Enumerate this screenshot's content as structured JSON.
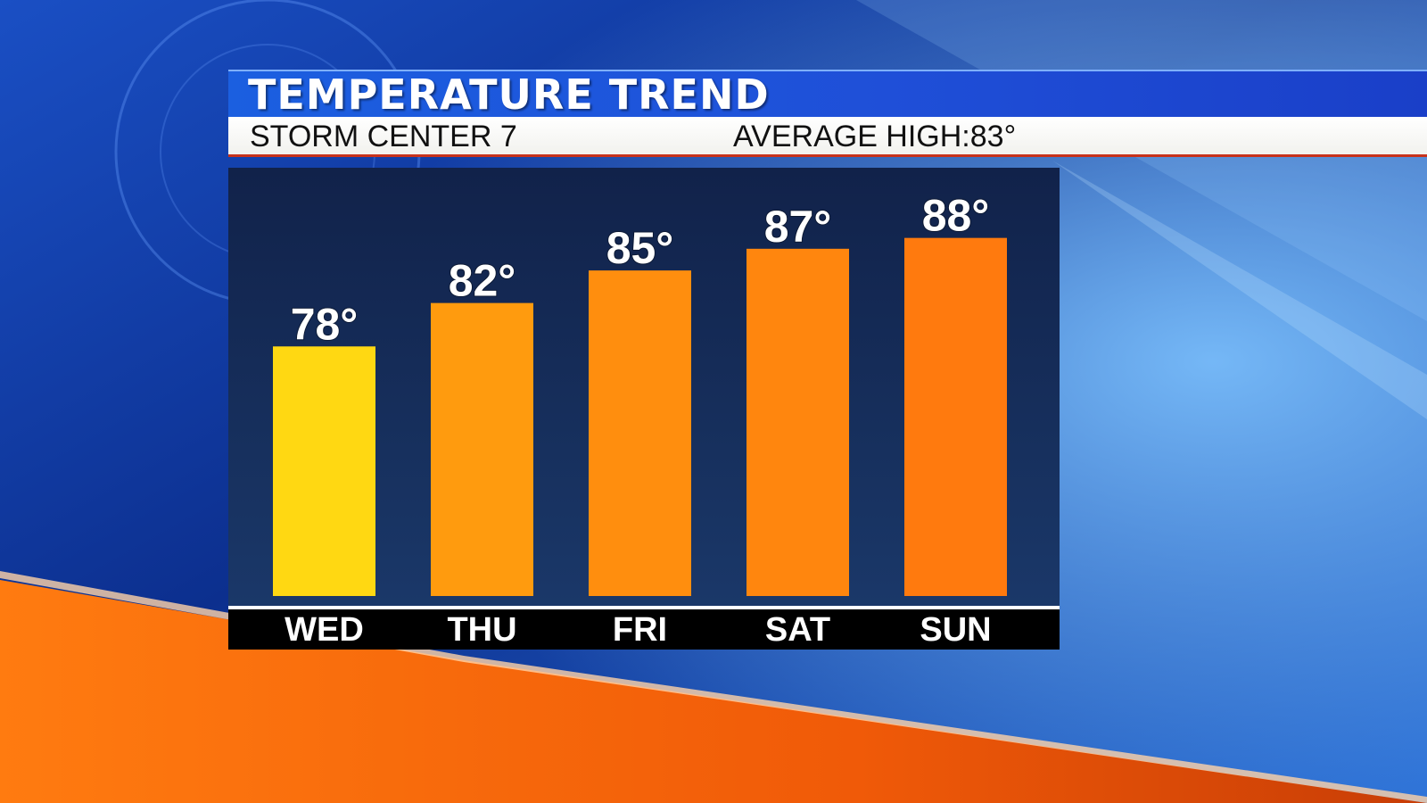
{
  "header": {
    "title": "TEMPERATURE TREND",
    "station": "STORM CENTER 7",
    "average_high_label": "AVERAGE HIGH:",
    "average_high_value": "83°"
  },
  "colors": {
    "bar_wed": "#FFD812",
    "bar_thu": "#FF9B0E",
    "bar_fri": "#FF8E0E",
    "bar_sat": "#FF860E",
    "bar_sun": "#FF7A0E",
    "panel": "#14284e",
    "label_band": "#000000"
  },
  "chart_data": {
    "type": "bar",
    "title": "TEMPERATURE TREND",
    "categories": [
      "WED",
      "THU",
      "FRI",
      "SAT",
      "SUN"
    ],
    "values": [
      78,
      82,
      85,
      87,
      88
    ],
    "data_labels": [
      "78°",
      "82°",
      "85°",
      "87°",
      "88°"
    ],
    "unit": "°",
    "xlabel": "",
    "ylabel": "",
    "ylim": [
      55,
      92
    ],
    "grid": false,
    "legend": "none"
  }
}
